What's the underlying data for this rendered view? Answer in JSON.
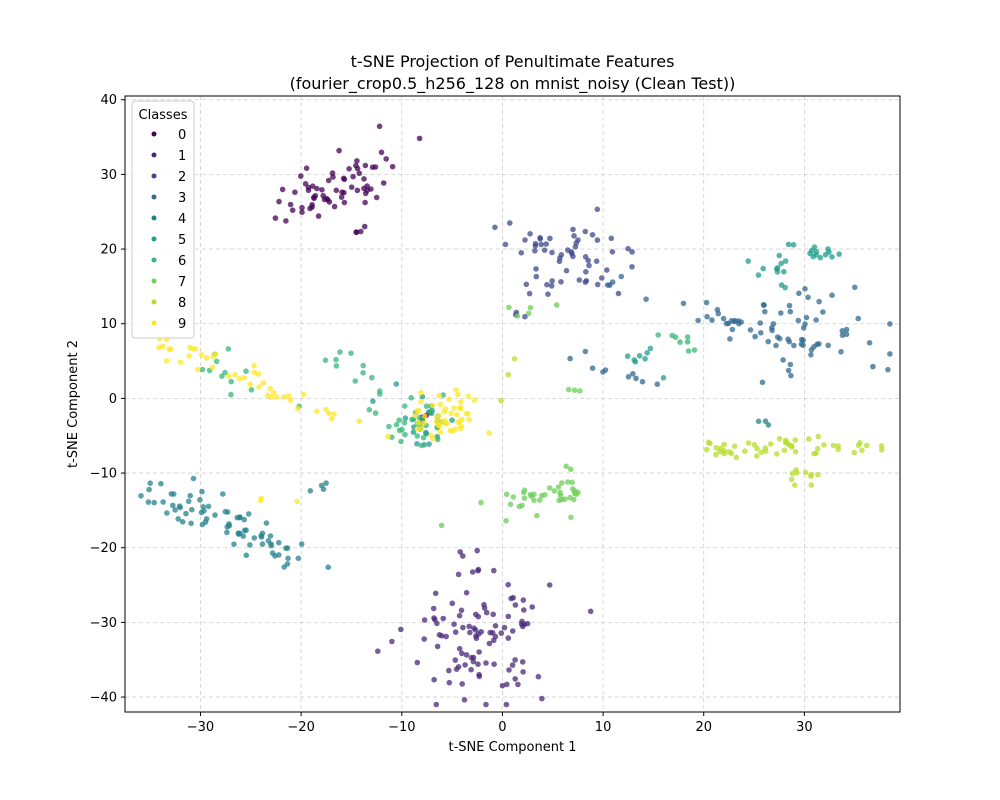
{
  "chart_data": {
    "type": "scatter",
    "title_line1": "t-SNE Projection of Penultimate Features",
    "title_line2": "(fourier_crop0.5_h256_128 on mnist_noisy (Clean Test))",
    "xlabel": "t-SNE Component 1",
    "ylabel": "t-SNE Component 2",
    "xlim": [
      -37.5,
      39.5
    ],
    "ylim": [
      -42,
      40.5
    ],
    "xticks": [
      -30,
      -20,
      -10,
      0,
      10,
      20,
      30
    ],
    "yticks": [
      -40,
      -30,
      -20,
      -10,
      0,
      10,
      20,
      30,
      40
    ],
    "grid": true,
    "legend": {
      "title": "Classes",
      "placement": "top-left"
    },
    "series": [
      {
        "name": "0",
        "color": "#440154",
        "clusters": [
          {
            "cx": -16.5,
            "cy": 29,
            "sx": 1.5,
            "sy": 4,
            "rot": -55,
            "n": 60
          },
          {
            "cx": -13,
            "cy": 27.5,
            "sx": 0.6,
            "sy": 1,
            "rot": 0,
            "n": 6
          },
          {
            "cx": -14.5,
            "cy": 22,
            "sx": 0.4,
            "sy": 0.6,
            "rot": 0,
            "n": 4
          },
          {
            "cx": -7,
            "cy": -2.5,
            "sx": 0.8,
            "sy": 0.8,
            "rot": 0,
            "n": 4
          }
        ]
      },
      {
        "name": "1",
        "color": "#482878",
        "clusters": [
          {
            "cx": -2.5,
            "cy": -32,
            "sx": 3.5,
            "sy": 4.5,
            "rot": 0,
            "n": 95
          },
          {
            "cx": -3.5,
            "cy": -22,
            "sx": 1,
            "sy": 1.2,
            "rot": 0,
            "n": 6
          },
          {
            "cx": 2.2,
            "cy": -29,
            "sx": 0.5,
            "sy": 1,
            "rot": 0,
            "n": 5
          }
        ]
      },
      {
        "name": "2",
        "color": "#3e4989",
        "clusters": [
          {
            "cx": 7,
            "cy": 19,
            "sx": 3.5,
            "sy": 2.5,
            "rot": -25,
            "n": 55
          },
          {
            "cx": 4.5,
            "cy": 14,
            "sx": 0.8,
            "sy": 1,
            "rot": 0,
            "n": 5
          },
          {
            "cx": 1.5,
            "cy": 11.5,
            "sx": 0.5,
            "sy": 0.5,
            "rot": 0,
            "n": 3
          }
        ]
      },
      {
        "name": "3",
        "color": "#31688e",
        "clusters": [
          {
            "cx": 31,
            "cy": 9,
            "sx": 3.5,
            "sy": 3,
            "rot": 0,
            "n": 50
          },
          {
            "cx": 22.5,
            "cy": 10.5,
            "sx": 5,
            "sy": 1,
            "rot": -25,
            "n": 30
          },
          {
            "cx": 12,
            "cy": 3.5,
            "sx": 3,
            "sy": 1,
            "rot": -25,
            "n": 10
          }
        ]
      },
      {
        "name": "4",
        "color": "#26828e",
        "clusters": [
          {
            "cx": -27,
            "cy": -17,
            "sx": 6,
            "sy": 1.2,
            "rot": -32,
            "n": 75
          },
          {
            "cx": -18,
            "cy": -11.5,
            "sx": 0.7,
            "sy": 0.5,
            "rot": 0,
            "n": 4
          },
          {
            "cx": 26,
            "cy": -3,
            "sx": 0.5,
            "sy": 0.5,
            "rot": 0,
            "n": 3
          }
        ]
      },
      {
        "name": "5",
        "color": "#1f9e89",
        "clusters": [
          {
            "cx": 27.5,
            "cy": 16.5,
            "sx": 1.2,
            "sy": 1.2,
            "rot": 0,
            "n": 12
          },
          {
            "cx": 31,
            "cy": 19.3,
            "sx": 1.4,
            "sy": 0.7,
            "rot": 0,
            "n": 14
          },
          {
            "cx": 14,
            "cy": 5,
            "sx": 2.5,
            "sy": 1,
            "rot": -25,
            "n": 8
          },
          {
            "cx": -8,
            "cy": -2.5,
            "sx": 1.8,
            "sy": 2,
            "rot": 0,
            "n": 22
          }
        ]
      },
      {
        "name": "6",
        "color": "#35b779",
        "clusters": [
          {
            "cx": -8.5,
            "cy": -3,
            "sx": 2,
            "sy": 2,
            "rot": 0,
            "n": 30
          },
          {
            "cx": -15,
            "cy": 4.5,
            "sx": 1.5,
            "sy": 1,
            "rot": -40,
            "n": 10
          },
          {
            "cx": -27,
            "cy": 3,
            "sx": 3,
            "sy": 1,
            "rot": -30,
            "n": 12
          },
          {
            "cx": 17.5,
            "cy": 7.5,
            "sx": 1.5,
            "sy": 0.8,
            "rot": -25,
            "n": 8
          }
        ]
      },
      {
        "name": "7",
        "color": "#6ece58",
        "clusters": [
          {
            "cx": 3.5,
            "cy": -13.5,
            "sx": 3.5,
            "sy": 1,
            "rot": 20,
            "n": 32
          },
          {
            "cx": 7,
            "cy": -11,
            "sx": 1,
            "sy": 1.5,
            "rot": 0,
            "n": 8
          },
          {
            "cx": 2.5,
            "cy": 12,
            "sx": 1,
            "sy": 0.5,
            "rot": 0,
            "n": 5
          },
          {
            "cx": 7,
            "cy": 1.2,
            "sx": 0.5,
            "sy": 0.3,
            "rot": 0,
            "n": 3
          }
        ]
      },
      {
        "name": "8",
        "color": "#b5de2b",
        "clusters": [
          {
            "cx": 27,
            "cy": -6.5,
            "sx": 5,
            "sy": 0.6,
            "rot": 3,
            "n": 50
          },
          {
            "cx": 30,
            "cy": -10.5,
            "sx": 1.5,
            "sy": 0.6,
            "rot": 0,
            "n": 10
          },
          {
            "cx": 0.5,
            "cy": 1.5,
            "sx": 0.5,
            "sy": 1.5,
            "rot": 0,
            "n": 3
          }
        ]
      },
      {
        "name": "9",
        "color": "#fde725",
        "clusters": [
          {
            "cx": -5.5,
            "cy": -2.5,
            "sx": 1.8,
            "sy": 1.8,
            "rot": 0,
            "n": 50
          },
          {
            "cx": -25,
            "cy": 2.5,
            "sx": 5.5,
            "sy": 0.8,
            "rot": -30,
            "n": 45
          },
          {
            "cx": -22,
            "cy": -13.5,
            "sx": 1,
            "sy": 0.5,
            "rot": 0,
            "n": 3
          }
        ]
      }
    ]
  }
}
